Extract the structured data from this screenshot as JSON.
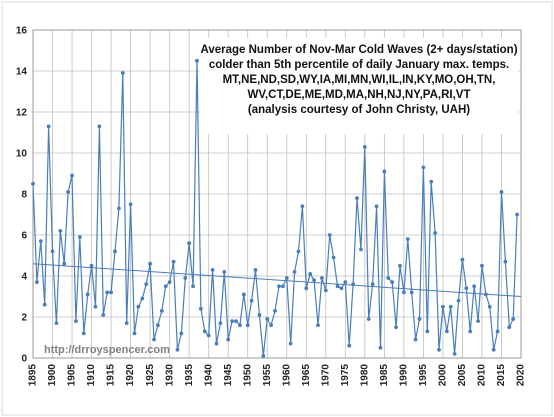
{
  "chart_data": {
    "type": "line",
    "title_lines": [
      "Average Number of Nov-Mar Cold Waves (2+ days/station)",
      "colder than 5th percentile of daily January max. temps.",
      "MT,NE,ND,SD,WY,IA,MI,MN,WI,IL,IN,KY,MO,OH,TN,",
      "WV,CT,DE,ME,MD,MA,NH,NJ,NY,PA,RI,VT",
      "(analysis courtesy of John Christy, UAH)"
    ],
    "credit": "http://drroyspencer.com",
    "xlim": [
      1895,
      2020
    ],
    "ylim": [
      0,
      16
    ],
    "x_ticks": [
      "1895",
      "1900",
      "1905",
      "1910",
      "1915",
      "1920",
      "1925",
      "1930",
      "1935",
      "1940",
      "1945",
      "1950",
      "1955",
      "1960",
      "1965",
      "1970",
      "1975",
      "1980",
      "1985",
      "1990",
      "1995",
      "2000",
      "2005",
      "2010",
      "2015",
      "2020"
    ],
    "y_ticks": [
      "0",
      "2",
      "4",
      "6",
      "8",
      "10",
      "12",
      "14",
      "16"
    ],
    "grid": true,
    "trend": {
      "x": [
        1895,
        2020
      ],
      "y": [
        4.6,
        3.0
      ]
    },
    "colors": {
      "line": "#4a7ebb",
      "marker": "#4a7ebb",
      "trend": "#4a7ebb",
      "grid": "#bfbfbf"
    },
    "x": [
      1895,
      1896,
      1897,
      1898,
      1899,
      1900,
      1901,
      1902,
      1903,
      1904,
      1905,
      1906,
      1907,
      1908,
      1909,
      1910,
      1911,
      1912,
      1913,
      1914,
      1915,
      1916,
      1917,
      1918,
      1919,
      1920,
      1921,
      1922,
      1923,
      1924,
      1925,
      1926,
      1927,
      1928,
      1929,
      1930,
      1931,
      1932,
      1933,
      1934,
      1935,
      1936,
      1937,
      1938,
      1939,
      1940,
      1941,
      1942,
      1943,
      1944,
      1945,
      1946,
      1947,
      1948,
      1949,
      1950,
      1951,
      1952,
      1953,
      1954,
      1955,
      1956,
      1957,
      1958,
      1959,
      1960,
      1961,
      1962,
      1963,
      1964,
      1965,
      1966,
      1967,
      1968,
      1969,
      1970,
      1971,
      1972,
      1973,
      1974,
      1975,
      1976,
      1977,
      1978,
      1979,
      1980,
      1981,
      1982,
      1983,
      1984,
      1985,
      1986,
      1987,
      1988,
      1989,
      1990,
      1991,
      1992,
      1993,
      1994,
      1995,
      1996,
      1997,
      1998,
      1999,
      2000,
      2001,
      2002,
      2003,
      2004,
      2005,
      2006,
      2007,
      2008,
      2009,
      2010,
      2011,
      2012,
      2013,
      2014,
      2015,
      2016,
      2017,
      2018,
      2019
    ],
    "y": [
      8.5,
      3.7,
      5.7,
      2.6,
      11.3,
      5.2,
      1.7,
      6.2,
      4.6,
      8.1,
      8.9,
      1.8,
      5.9,
      1.2,
      3.1,
      4.5,
      2.5,
      11.3,
      2.1,
      3.2,
      3.2,
      5.2,
      7.3,
      13.9,
      1.7,
      7.5,
      1.2,
      2.5,
      2.9,
      3.6,
      4.6,
      0.9,
      1.6,
      2.3,
      3.5,
      3.7,
      4.7,
      0.4,
      1.2,
      3.9,
      5.6,
      3.5,
      14.5,
      2.4,
      1.3,
      1.1,
      4.3,
      0.7,
      1.7,
      4.2,
      0.9,
      1.8,
      1.8,
      1.6,
      3.1,
      1.6,
      2.8,
      4.3,
      2.1,
      0.1,
      1.9,
      1.6,
      2.3,
      3.5,
      3.5,
      3.9,
      0.7,
      4.2,
      5.2,
      7.4,
      3.4,
      4.1,
      3.8,
      1.6,
      3.9,
      3.3,
      6.0,
      4.9,
      3.5,
      3.4,
      3.7,
      0.6,
      3.6,
      7.8,
      5.3,
      10.3,
      1.9,
      3.6,
      7.4,
      0.5,
      9.1,
      3.9,
      3.7,
      1.5,
      4.5,
      3.2,
      5.8,
      3.2,
      0.9,
      1.9,
      9.3,
      1.3,
      8.6,
      6.1,
      0.4,
      2.5,
      1.3,
      2.5,
      0.2,
      2.8,
      4.8,
      3.4,
      1.3,
      3.5,
      1.8,
      4.5,
      3.1,
      2.5,
      0.4,
      1.3,
      8.1,
      4.7,
      1.5,
      1.9,
      7.0
    ]
  }
}
